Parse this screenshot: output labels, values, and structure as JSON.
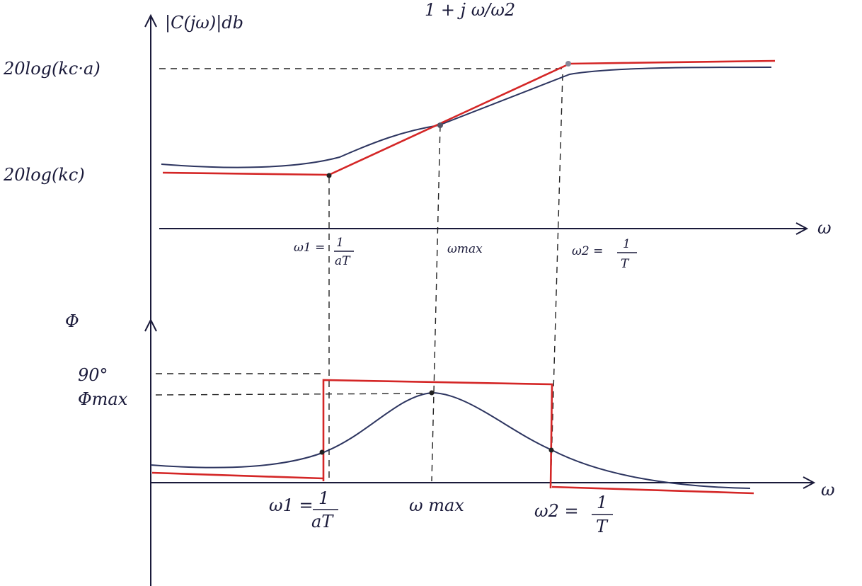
{
  "top_fragment": "1 + j ω/ω2",
  "magnitude": {
    "axis_label": "|C(jω)|db",
    "high_label": "20log(kc·a)",
    "low_label": "20log(kc)",
    "x_label": "ω",
    "w1": {
      "lhs": "ω1 =",
      "num": "1",
      "den": "aT"
    },
    "wmax": "ωmax",
    "w2": {
      "lhs": "ω2 =",
      "num": "1",
      "den": "T"
    }
  },
  "phase": {
    "axis_label": "Φ",
    "top_label": "90°",
    "max_label": "Φmax",
    "x_label": "ω",
    "w1": {
      "lhs": "ω1 =",
      "num": "1",
      "den": "aT"
    },
    "wmax": "ω max",
    "w2": {
      "lhs": "ω2 =",
      "num": "1",
      "den": "T"
    }
  }
}
